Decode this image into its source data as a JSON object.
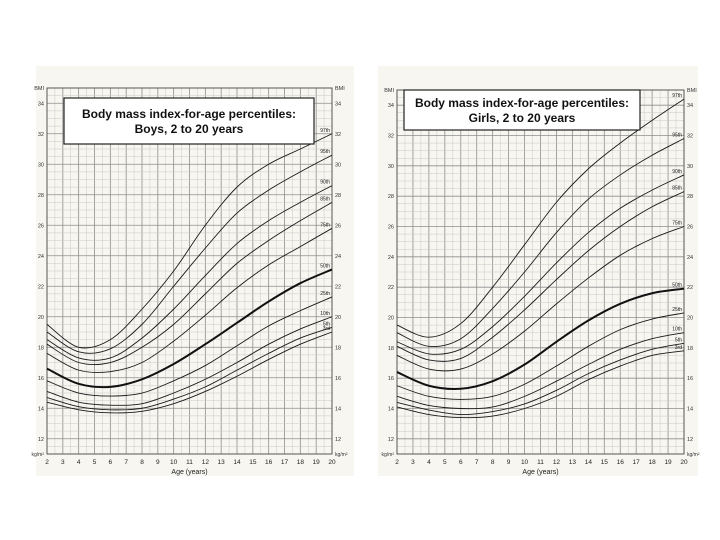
{
  "chart_data": [
    {
      "type": "line",
      "title_line1": "Body mass index-for-age percentiles:",
      "title_line2": "Boys, 2 to 20 years",
      "xlabel": "Age (years)",
      "ylabel": "BMI",
      "unit": "kg/m²",
      "xlim": [
        2,
        20
      ],
      "ylim": [
        11,
        35
      ],
      "x_ticks": [
        2,
        3,
        4,
        5,
        6,
        7,
        8,
        9,
        10,
        11,
        12,
        13,
        14,
        15,
        16,
        17,
        18,
        19,
        20
      ],
      "y_ticks": [
        12,
        14,
        16,
        18,
        20,
        22,
        24,
        26,
        28,
        30,
        32,
        34
      ],
      "x": [
        2,
        4,
        6,
        8,
        10,
        12,
        14,
        16,
        18,
        20
      ],
      "series": [
        {
          "name": "97th",
          "values": [
            19.5,
            18.0,
            18.5,
            20.5,
            23.0,
            26.0,
            28.5,
            30.0,
            31.0,
            32.0
          ]
        },
        {
          "name": "95th",
          "values": [
            19.0,
            17.7,
            17.9,
            19.5,
            22.0,
            24.5,
            26.8,
            28.3,
            29.5,
            30.6
          ]
        },
        {
          "name": "90th",
          "values": [
            18.5,
            17.3,
            17.3,
            18.6,
            20.5,
            22.7,
            24.8,
            26.3,
            27.5,
            28.6
          ]
        },
        {
          "name": "85th",
          "values": [
            18.2,
            17.0,
            17.0,
            18.0,
            19.5,
            21.5,
            23.5,
            25.0,
            26.3,
            27.5
          ]
        },
        {
          "name": "75th",
          "values": [
            17.6,
            16.5,
            16.4,
            17.0,
            18.4,
            20.1,
            21.9,
            23.4,
            24.6,
            25.8
          ]
        },
        {
          "name": "50th",
          "values": [
            16.6,
            15.6,
            15.4,
            15.9,
            16.9,
            18.2,
            19.6,
            21.0,
            22.2,
            23.1
          ]
        },
        {
          "name": "25th",
          "values": [
            15.8,
            15.0,
            14.8,
            15.0,
            15.8,
            16.8,
            18.1,
            19.4,
            20.4,
            21.3
          ]
        },
        {
          "name": "10th",
          "values": [
            15.1,
            14.4,
            14.2,
            14.3,
            15.0,
            15.9,
            17.0,
            18.2,
            19.2,
            20.0
          ]
        },
        {
          "name": "5th",
          "values": [
            14.7,
            14.1,
            13.9,
            14.0,
            14.6,
            15.4,
            16.5,
            17.6,
            18.6,
            19.3
          ]
        },
        {
          "name": "3rd",
          "values": [
            14.4,
            13.9,
            13.7,
            13.8,
            14.3,
            15.1,
            16.1,
            17.2,
            18.2,
            19.0
          ]
        }
      ]
    },
    {
      "type": "line",
      "title_line1": "Body mass index-for-age percentiles:",
      "title_line2": "Girls, 2 to 20 years",
      "xlabel": "Age (years)",
      "ylabel": "BMI",
      "unit": "kg/m²",
      "xlim": [
        2,
        20
      ],
      "ylim": [
        11,
        35
      ],
      "x_ticks": [
        2,
        3,
        4,
        5,
        6,
        7,
        8,
        9,
        10,
        11,
        12,
        13,
        14,
        15,
        16,
        17,
        18,
        19,
        20
      ],
      "y_ticks": [
        12,
        14,
        16,
        18,
        20,
        22,
        24,
        26,
        28,
        30,
        32,
        34
      ],
      "x": [
        2,
        4,
        6,
        8,
        10,
        12,
        14,
        16,
        18,
        20
      ],
      "series": [
        {
          "name": "97th",
          "values": [
            19.5,
            18.7,
            19.6,
            22.0,
            24.8,
            27.6,
            29.8,
            31.5,
            33.0,
            34.4
          ]
        },
        {
          "name": "95th",
          "values": [
            19.0,
            18.1,
            18.6,
            20.6,
            23.0,
            25.6,
            27.8,
            29.4,
            30.7,
            31.8
          ]
        },
        {
          "name": "90th",
          "values": [
            18.4,
            17.6,
            17.9,
            19.4,
            21.4,
            23.6,
            25.6,
            27.2,
            28.4,
            29.4
          ]
        },
        {
          "name": "85th",
          "values": [
            18.1,
            17.2,
            17.3,
            18.7,
            20.5,
            22.5,
            24.4,
            26.0,
            27.3,
            28.3
          ]
        },
        {
          "name": "75th",
          "values": [
            17.5,
            16.6,
            16.6,
            17.6,
            19.1,
            20.9,
            22.6,
            24.1,
            25.2,
            26.0
          ]
        },
        {
          "name": "50th",
          "values": [
            16.4,
            15.5,
            15.3,
            15.8,
            16.9,
            18.4,
            19.8,
            20.9,
            21.6,
            21.9
          ]
        },
        {
          "name": "25th",
          "values": [
            15.5,
            14.8,
            14.6,
            14.8,
            15.6,
            16.8,
            18.1,
            19.2,
            19.9,
            20.3
          ]
        },
        {
          "name": "10th",
          "values": [
            14.8,
            14.2,
            14.0,
            14.1,
            14.8,
            15.8,
            16.9,
            17.9,
            18.6,
            19.0
          ]
        },
        {
          "name": "5th",
          "values": [
            14.4,
            13.9,
            13.6,
            13.8,
            14.3,
            15.2,
            16.3,
            17.2,
            17.9,
            18.3
          ]
        },
        {
          "name": "3rd",
          "values": [
            14.1,
            13.6,
            13.4,
            13.5,
            14.0,
            14.8,
            15.9,
            16.8,
            17.5,
            17.8
          ]
        }
      ]
    }
  ]
}
